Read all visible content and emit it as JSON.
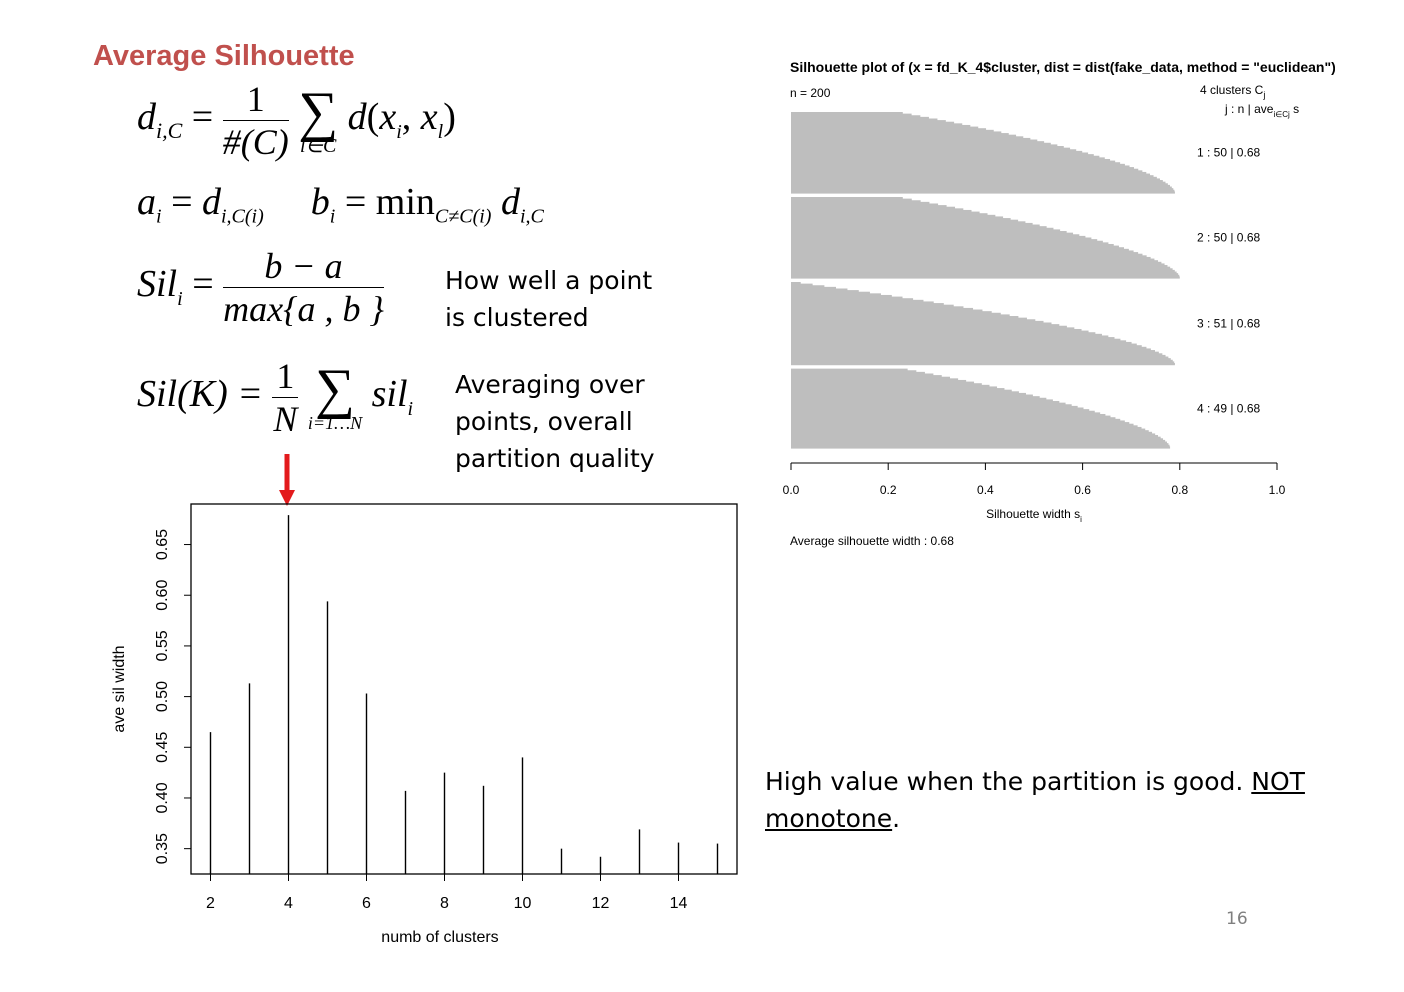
{
  "slide": {
    "title": "Average Silhouette",
    "note_point": [
      "How well a point",
      "is clustered"
    ],
    "note_avg": [
      "Averaging over",
      "points, overall",
      "partition quality"
    ],
    "bottom_note_plain": "High value when the partition is good. ",
    "bottom_note_underlined_1": "NOT",
    "bottom_note_underlined_2": "monotone",
    "bottom_note_end": ".",
    "page_number": "16",
    "arrow_color": "#e31a1c"
  },
  "formulas": {
    "d_lhs": "d",
    "d_sub": "i,C",
    "d_num": "1",
    "d_den": "#(C)",
    "d_sum_sub": "l∈C",
    "d_rhs": "d(x",
    "a_def": "a",
    "b_def": "b",
    "min": "min",
    "sil_lhs": "Sil",
    "sil_num": "b − a",
    "sil_den": "max{a , b }",
    "silK_lhs": "Sil(K) =",
    "silK_num": "1",
    "silK_den": "N",
    "silK_sum_sub": "i=1…N",
    "silK_rhs": "sil"
  },
  "chart_data": [
    {
      "type": "bar",
      "title": "",
      "xlabel": "numb of clusters",
      "ylabel": "ave sil width",
      "xlim": [
        1.5,
        15.5
      ],
      "ylim": [
        0.325,
        0.69
      ],
      "x_ticks": [
        2,
        4,
        6,
        8,
        10,
        12,
        14
      ],
      "y_ticks": [
        0.35,
        0.4,
        0.45,
        0.5,
        0.55,
        0.6,
        0.65
      ],
      "categories": [
        2,
        3,
        4,
        5,
        6,
        7,
        8,
        9,
        10,
        11,
        12,
        13,
        14,
        15
      ],
      "values": [
        0.465,
        0.513,
        0.679,
        0.594,
        0.503,
        0.407,
        0.425,
        0.412,
        0.44,
        0.35,
        0.342,
        0.369,
        0.356,
        0.355
      ],
      "highlight_x": 4,
      "bar_color": "#000000"
    },
    {
      "type": "bar",
      "title": "Silhouette plot of (x = fd_K_4$cluster, dist = dist(fake_data, method = \"euclidean\"))",
      "n_label": "n = 200",
      "clusters_label": "4 clusters C",
      "clusters_sub": "j",
      "header_label": "j : n | ave",
      "header_sub": "i∈Cj",
      "header_s": "s",
      "xlabel": "Silhouette width s",
      "xlabel_sub": "i",
      "xlim": [
        0,
        1
      ],
      "x_ticks": [
        "0.0",
        "0.2",
        "0.4",
        "0.6",
        "0.8",
        "1.0"
      ],
      "average_label": "Average silhouette width :  0.68",
      "bar_color": "#bebebe",
      "clusters": [
        {
          "label": "1 :  50  |  0.68",
          "n": 50,
          "ave": 0.68,
          "max": 0.79,
          "min": 0.23
        },
        {
          "label": "2 :  50  |  0.68",
          "n": 50,
          "ave": 0.68,
          "max": 0.8,
          "min": 0.23
        },
        {
          "label": "3 :  51  |  0.68",
          "n": 51,
          "ave": 0.68,
          "max": 0.79,
          "min": 0.02
        },
        {
          "label": "4 :  49  |  0.68",
          "n": 49,
          "ave": 0.68,
          "max": 0.78,
          "min": 0.24
        }
      ]
    }
  ]
}
